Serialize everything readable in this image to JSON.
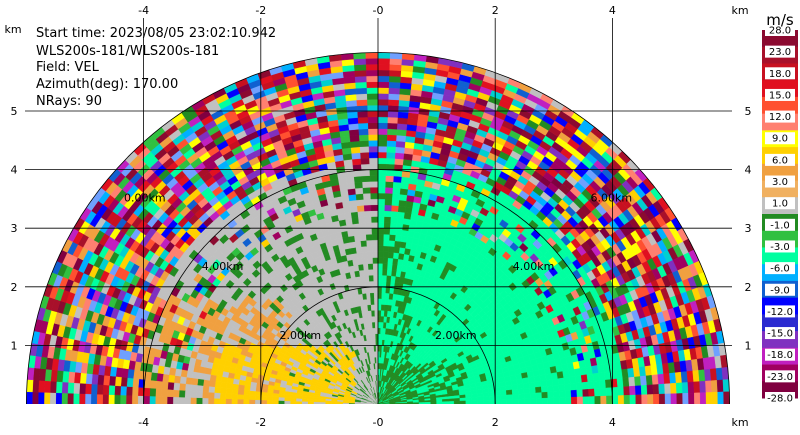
{
  "info": {
    "start_time": "Start time: 2023/08/05 23:02:10.942",
    "station": "WLS200s-181/WLS200s-181",
    "field": "Field: VEL",
    "azimuth": "Azimuth(deg): 170.00",
    "nrays": "NRays: 90"
  },
  "chart_data": {
    "type": "heatmap",
    "plot_kind": "RHI velocity scan (half-disc)",
    "x_axis": {
      "unit": "km",
      "range": [
        -6,
        6
      ],
      "ticks": [
        "-4",
        "-2",
        "-0",
        "2",
        "4"
      ],
      "tick_values": [
        -4,
        -2,
        0,
        2,
        4
      ]
    },
    "y_axis": {
      "unit": "km",
      "range": [
        0,
        6
      ],
      "ticks": [
        "1",
        "2",
        "3",
        "4",
        "5"
      ],
      "tick_values": [
        1,
        2,
        3,
        4,
        5
      ]
    },
    "max_range_km": 6,
    "range_rings": [
      {
        "km": 2,
        "label": "2.00km"
      },
      {
        "km": 4,
        "label": "4.00km"
      },
      {
        "km": 6,
        "label": "6.00km"
      }
    ],
    "left_ring_label": "0.00km",
    "colorbar": {
      "unit": "m/s",
      "labels": [
        "28.0",
        "23.0",
        "18.0",
        "15.0",
        "12.0",
        "9.0",
        "6.0",
        "3.0",
        "1.0",
        "-1.0",
        "-3.0",
        "-6.0",
        "-9.0",
        "-12.0",
        "-15.0",
        "-18.0",
        "-23.0",
        "-28.0"
      ],
      "colors": [
        "#8b0a30",
        "#a8102a",
        "#c81020",
        "#e01020",
        "#ff5030",
        "#ff8070",
        "#ffff00",
        "#ffd000",
        "#f0a040",
        "#f0b060",
        "#c0c0c0",
        "#228b22",
        "#30c040",
        "#00ffa0",
        "#00b0ff",
        "#1060d0",
        "#0000ff",
        "#2a2ad0",
        "#8030c0",
        "#c020c0",
        "#a00060",
        "#800040"
      ]
    },
    "grid": true,
    "field": "VEL"
  }
}
